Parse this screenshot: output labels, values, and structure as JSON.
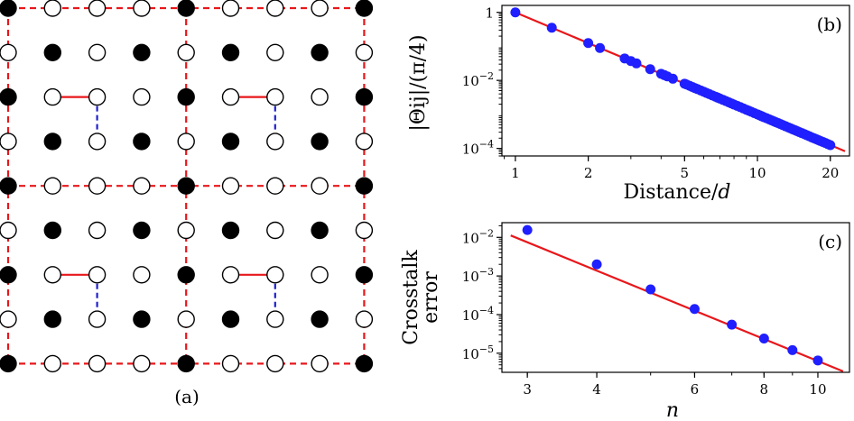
{
  "chart_data": [
    {
      "type": "diagram",
      "panel_label": "(a)",
      "lattice": {
        "rows": 9,
        "cols": 9,
        "description_colors": {
          "filled": "#000000",
          "open": "#ffffff"
        },
        "dashed_grid_color": "#e8171b",
        "block_size": 4,
        "pairs": [
          {
            "block_row": 0,
            "block_col": 0
          },
          {
            "block_row": 0,
            "block_col": 1
          },
          {
            "block_row": 1,
            "block_col": 0
          },
          {
            "block_row": 1,
            "block_col": 1
          }
        ]
      }
    },
    {
      "type": "scatter",
      "panel_label": "(b)",
      "xlabel": "Distance/",
      "xlabel_var": "d",
      "ylabel": "|Θij|/(π/4)",
      "xscale": "log",
      "yscale": "log",
      "xlim": [
        0.88,
        24
      ],
      "ylim": [
        6e-05,
        1.6
      ],
      "xticks": [
        {
          "value": 1,
          "label": "1"
        },
        {
          "value": 2,
          "label": "2"
        },
        {
          "value": 5,
          "label": "5"
        },
        {
          "value": 10,
          "label": "10"
        },
        {
          "value": 20,
          "label": "20"
        }
      ],
      "yticks": [
        {
          "value": 1,
          "label": "1"
        },
        {
          "value": 0.01,
          "label": "10",
          "exp": "−2"
        },
        {
          "value": 0.0001,
          "label": "10",
          "exp": "−4"
        }
      ],
      "fit_line": {
        "x": [
          1,
          23
        ],
        "y": [
          1,
          8.28e-05
        ],
        "color": "#e8171b"
      },
      "points_color": "#1f1fff",
      "points_x": [
        1,
        1.414,
        2,
        2.236,
        2.828,
        3,
        3.162,
        3.606,
        4,
        4.123,
        4.243,
        4.472,
        5,
        5.099,
        5.385,
        5.657,
        5.831,
        6,
        6.325,
        6.708,
        7,
        7.211,
        7.616,
        8,
        8.485,
        9,
        9.434,
        10,
        10.63,
        11.18,
        11.7,
        12.17,
        12.73,
        13.42,
        14,
        14.56,
        15.23,
        16,
        16.76,
        17.49,
        18.2,
        19.1,
        20
      ],
      "points_y": [
        1,
        0.354,
        0.125,
        0.0894,
        0.0442,
        0.037,
        0.0316,
        0.0213,
        0.0156,
        0.0143,
        0.0131,
        0.0112,
        0.008,
        0.00754,
        0.0064,
        0.00552,
        0.00504,
        0.00463,
        0.00395,
        0.00331,
        0.00292,
        0.00267,
        0.00226,
        0.00195,
        0.00164,
        0.00137,
        0.00119,
        0.001,
        0.00083,
        0.000716,
        0.000624,
        0.000555,
        0.000485,
        0.000414,
        0.000364,
        0.000324,
        0.000283,
        0.000244,
        0.000212,
        0.000187,
        0.000166,
        0.000144,
        0.000125
      ]
    },
    {
      "type": "scatter",
      "panel_label": "(c)",
      "xlabel": "n",
      "ylabel_line1": "Crosstalk",
      "ylabel_line2": "error",
      "xscale": "log",
      "yscale": "log",
      "xlim": [
        2.7,
        11.4
      ],
      "ylim": [
        3.2e-06,
        0.024
      ],
      "xticks": [
        {
          "value": 3,
          "label": "3"
        },
        {
          "value": 4,
          "label": "4"
        },
        {
          "value": 6,
          "label": "6"
        },
        {
          "value": 8,
          "label": "8"
        },
        {
          "value": 10,
          "label": "10"
        }
      ],
      "yticks": [
        {
          "value": 0.01,
          "label": "10",
          "exp": "−2"
        },
        {
          "value": 0.001,
          "label": "10",
          "exp": "−3"
        },
        {
          "value": 0.0001,
          "label": "10",
          "exp": "−4"
        },
        {
          "value": 1e-05,
          "label": "10",
          "exp": "−5"
        }
      ],
      "fit_line": {
        "x": [
          2.8,
          11.1
        ],
        "y": [
          0.0112,
          3.4e-06
        ],
        "color": "#e8171b"
      },
      "points_color": "#1f1fff",
      "points": [
        {
          "x": 3,
          "y": 0.0155
        },
        {
          "x": 4,
          "y": 0.002
        },
        {
          "x": 5,
          "y": 0.00045
        },
        {
          "x": 6,
          "y": 0.00014
        },
        {
          "x": 7,
          "y": 5.5e-05
        },
        {
          "x": 8,
          "y": 2.4e-05
        },
        {
          "x": 9,
          "y": 1.2e-05
        },
        {
          "x": 10,
          "y": 6.5e-06
        }
      ]
    }
  ]
}
